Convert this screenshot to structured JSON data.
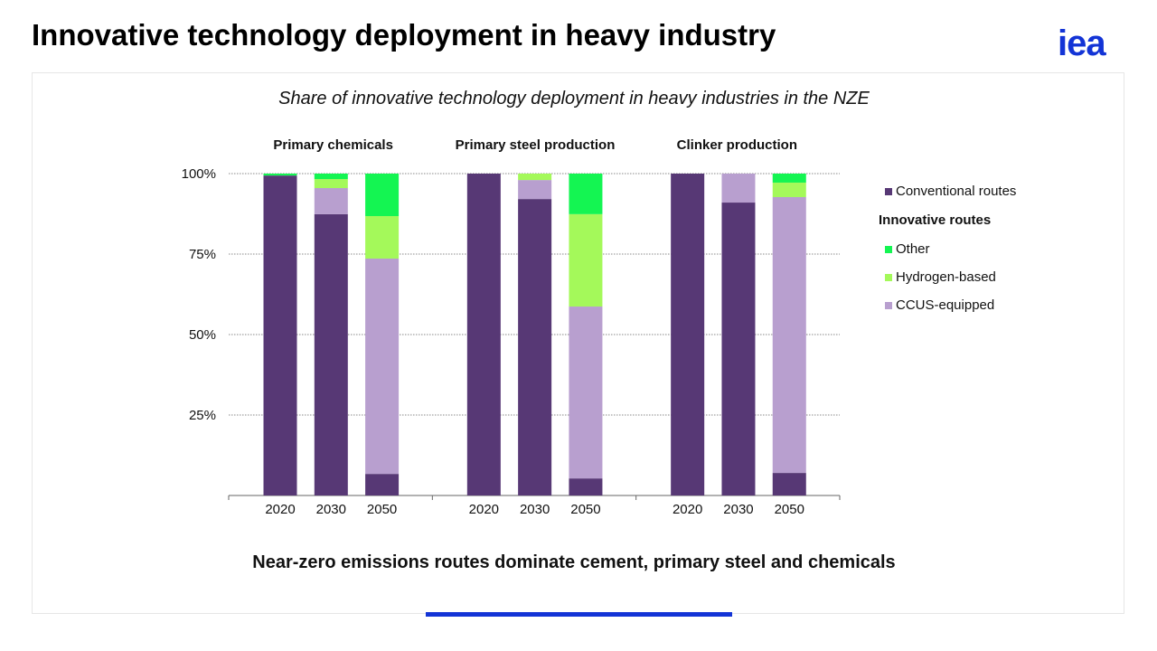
{
  "header": {
    "title": "Innovative technology deployment in heavy industry",
    "logo": "iea"
  },
  "footer": {
    "text": "Near-zero emissions routes dominate cement, primary steel and chemicals"
  },
  "colors": {
    "conventional": "#573875",
    "ccus": "#b89fcf",
    "hydrogen": "#a4f95a",
    "other": "#14f552",
    "accent": "#1334d6"
  },
  "legend": {
    "conventional": "Conventional routes",
    "innovative_heading": "Innovative routes",
    "other": "Other",
    "hydrogen": "Hydrogen-based",
    "ccus": "CCUS-equipped"
  },
  "chart_data": {
    "type": "bar",
    "stacked": true,
    "title": "Share of innovative technology deployment in heavy industries in the NZE",
    "ylim": [
      0,
      100
    ],
    "yticks": [
      "25%",
      "50%",
      "75%",
      "100%"
    ],
    "grid": true,
    "legend_position": "right",
    "groups": [
      {
        "name": "Primary chemicals",
        "categories": [
          "2020",
          "2030",
          "2050"
        ]
      },
      {
        "name": "Primary steel production",
        "categories": [
          "2020",
          "2030",
          "2050"
        ]
      },
      {
        "name": "Clinker production",
        "categories": [
          "2020",
          "2030",
          "2050"
        ]
      }
    ],
    "series": [
      {
        "name": "Conventional routes",
        "key": "conventional",
        "values": [
          [
            99.4,
            87.4,
            6.7
          ],
          [
            100,
            92.1,
            5.3
          ],
          [
            100,
            91.0,
            7.0
          ]
        ]
      },
      {
        "name": "CCUS-equipped",
        "key": "ccus",
        "values": [
          [
            0,
            8.1,
            66.9
          ],
          [
            0,
            5.9,
            53.4
          ],
          [
            0,
            9.0,
            85.7
          ]
        ]
      },
      {
        "name": "Hydrogen-based",
        "key": "hydrogen",
        "values": [
          [
            0,
            2.8,
            13.2
          ],
          [
            0,
            2.0,
            28.7
          ],
          [
            0,
            0,
            4.5
          ]
        ]
      },
      {
        "name": "Other",
        "key": "other",
        "values": [
          [
            0.6,
            1.7,
            13.2
          ],
          [
            0,
            0,
            12.6
          ],
          [
            0,
            0,
            2.8
          ]
        ]
      }
    ]
  }
}
